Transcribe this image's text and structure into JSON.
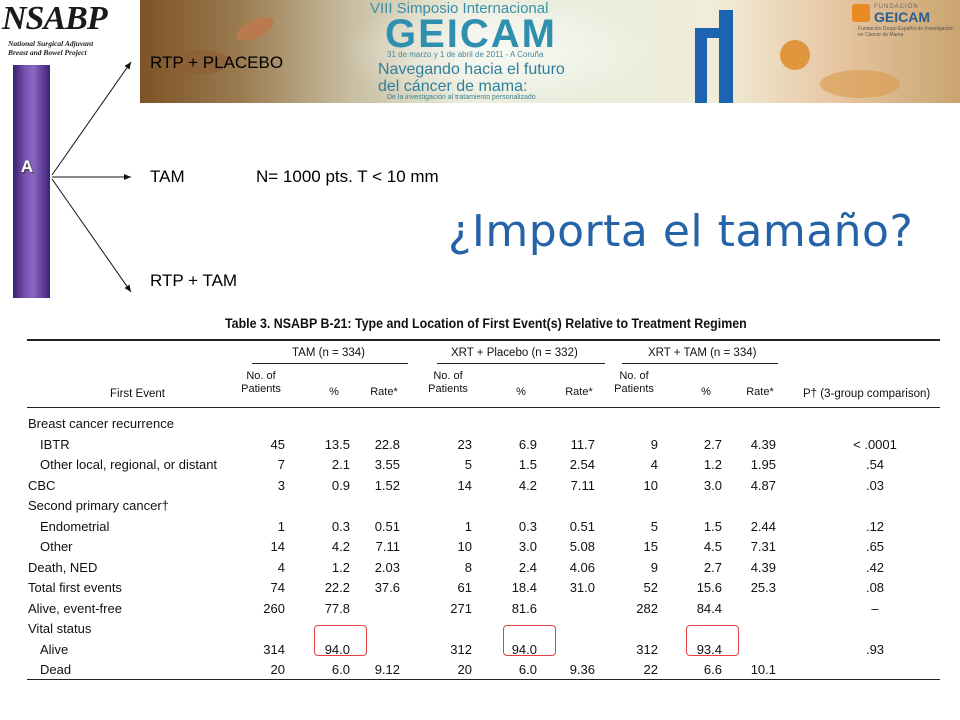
{
  "logo": {
    "name": "NSABP",
    "line1": "National Surgical Adjuvant",
    "line2": "Breast and Bowel Project"
  },
  "banner": {
    "edition": "VIII Simposio Internacional",
    "brand": "GEICAM",
    "dates": "31 de marzo y 1 de abril de 2011 - A Coruña",
    "tagline1": "Navegando hacia el futuro",
    "tagline2": "del cáncer de mama:",
    "tagline3": "De la investigación al tratamiento personalizado",
    "logo_foundation": "FUNDACIÓN",
    "logo_name": "GEICAM",
    "logo_desc": "Fundación Grupo Español de Investigación en Cáncer de Mama"
  },
  "diagram": {
    "arm_label": "A",
    "arm1": "RTP + PLACEBO",
    "arm2": "TAM",
    "arm2_note": "N= 1000 pts. T < 10 mm",
    "arm3": "RTP + TAM"
  },
  "title": "¿Importa el tamaño?",
  "table": {
    "caption": "Table 3.   NSABP B-21: Type and Location of First Event(s) Relative to Treatment Regimen",
    "groups": [
      "TAM (n = 334)",
      "XRT + Placebo (n = 332)",
      "XRT + TAM (n = 334)"
    ],
    "col_first_event": "First Event",
    "sub_headers": {
      "no_patients": "No. of\nPatients",
      "pct": "%",
      "rate": "Rate*"
    },
    "p_header": "P† (3-group comparison)",
    "rows": [
      {
        "label": "Breast cancer recurrence",
        "indent": false,
        "vals": [
          "",
          "",
          "",
          "",
          "",
          "",
          "",
          "",
          ""
        ],
        "p": ""
      },
      {
        "label": "IBTR",
        "indent": true,
        "vals": [
          "45",
          "13.5",
          "22.8",
          "23",
          "6.9",
          "11.7",
          "9",
          "2.7",
          "4.39"
        ],
        "p": "< .0001"
      },
      {
        "label": "Other local, regional, or distant",
        "indent": true,
        "vals": [
          "7",
          "2.1",
          "3.55",
          "5",
          "1.5",
          "2.54",
          "4",
          "1.2",
          "1.95"
        ],
        "p": ".54"
      },
      {
        "label": "CBC",
        "indent": false,
        "vals": [
          "3",
          "0.9",
          "1.52",
          "14",
          "4.2",
          "7.11",
          "10",
          "3.0",
          "4.87"
        ],
        "p": ".03"
      },
      {
        "label": "Second primary cancer†",
        "indent": false,
        "vals": [
          "",
          "",
          "",
          "",
          "",
          "",
          "",
          "",
          ""
        ],
        "p": ""
      },
      {
        "label": "Endometrial",
        "indent": true,
        "vals": [
          "1",
          "0.3",
          "0.51",
          "1",
          "0.3",
          "0.51",
          "5",
          "1.5",
          "2.44"
        ],
        "p": ".12"
      },
      {
        "label": "Other",
        "indent": true,
        "vals": [
          "14",
          "4.2",
          "7.11",
          "10",
          "3.0",
          "5.08",
          "15",
          "4.5",
          "7.31"
        ],
        "p": ".65"
      },
      {
        "label": "Death, NED",
        "indent": false,
        "vals": [
          "4",
          "1.2",
          "2.03",
          "8",
          "2.4",
          "4.06",
          "9",
          "2.7",
          "4.39"
        ],
        "p": ".42"
      },
      {
        "label": "Total first events",
        "indent": false,
        "vals": [
          "74",
          "22.2",
          "37.6",
          "61",
          "18.4",
          "31.0",
          "52",
          "15.6",
          "25.3"
        ],
        "p": ".08"
      },
      {
        "label": "Alive, event-free",
        "indent": false,
        "vals": [
          "260",
          "77.8",
          "",
          "271",
          "81.6",
          "",
          "282",
          "84.4",
          ""
        ],
        "p": "–"
      },
      {
        "label": "Vital status",
        "indent": false,
        "vals": [
          "",
          "",
          "",
          "",
          "",
          "",
          "",
          "",
          ""
        ],
        "p": ""
      },
      {
        "label": "Alive",
        "indent": true,
        "vals": [
          "314",
          "94.0",
          "",
          "312",
          "94.0",
          "",
          "312",
          "93.4",
          ""
        ],
        "p": ".93"
      },
      {
        "label": "Dead",
        "indent": true,
        "vals": [
          "20",
          "6.0",
          "9.12",
          "20",
          "6.0",
          "9.36",
          "22",
          "6.6",
          "10.1"
        ],
        "p": ""
      }
    ]
  },
  "colors": {
    "title": "#2563a8",
    "arm_bar": "#7a57b2",
    "highlight": "#e04040"
  }
}
